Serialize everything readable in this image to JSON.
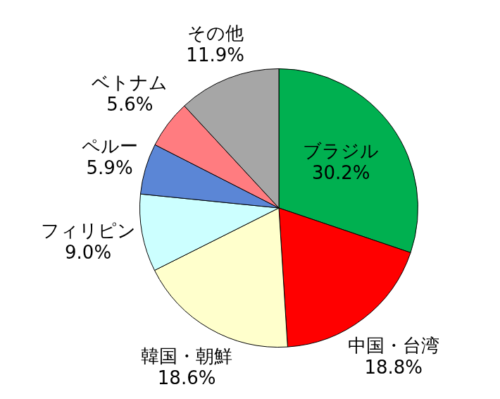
{
  "chart_data": {
    "type": "pie",
    "categories": [
      "ブラジル",
      "中国・台湾",
      "韓国・朝鮮",
      "フィリピン",
      "ペルー",
      "ベトナム",
      "その他"
    ],
    "values": [
      30.2,
      18.8,
      18.6,
      9.0,
      5.9,
      5.6,
      11.9
    ],
    "value_labels": [
      "30.2%",
      "18.8%",
      "18.6%",
      "9.0%",
      "5.9%",
      "5.6%",
      "11.9%"
    ],
    "colors": [
      "#00b050",
      "#ff0000",
      "#ffffcc",
      "#ccffff",
      "#5b86d6",
      "#ff7c80",
      "#a6a6a6"
    ],
    "data_labels": true
  }
}
